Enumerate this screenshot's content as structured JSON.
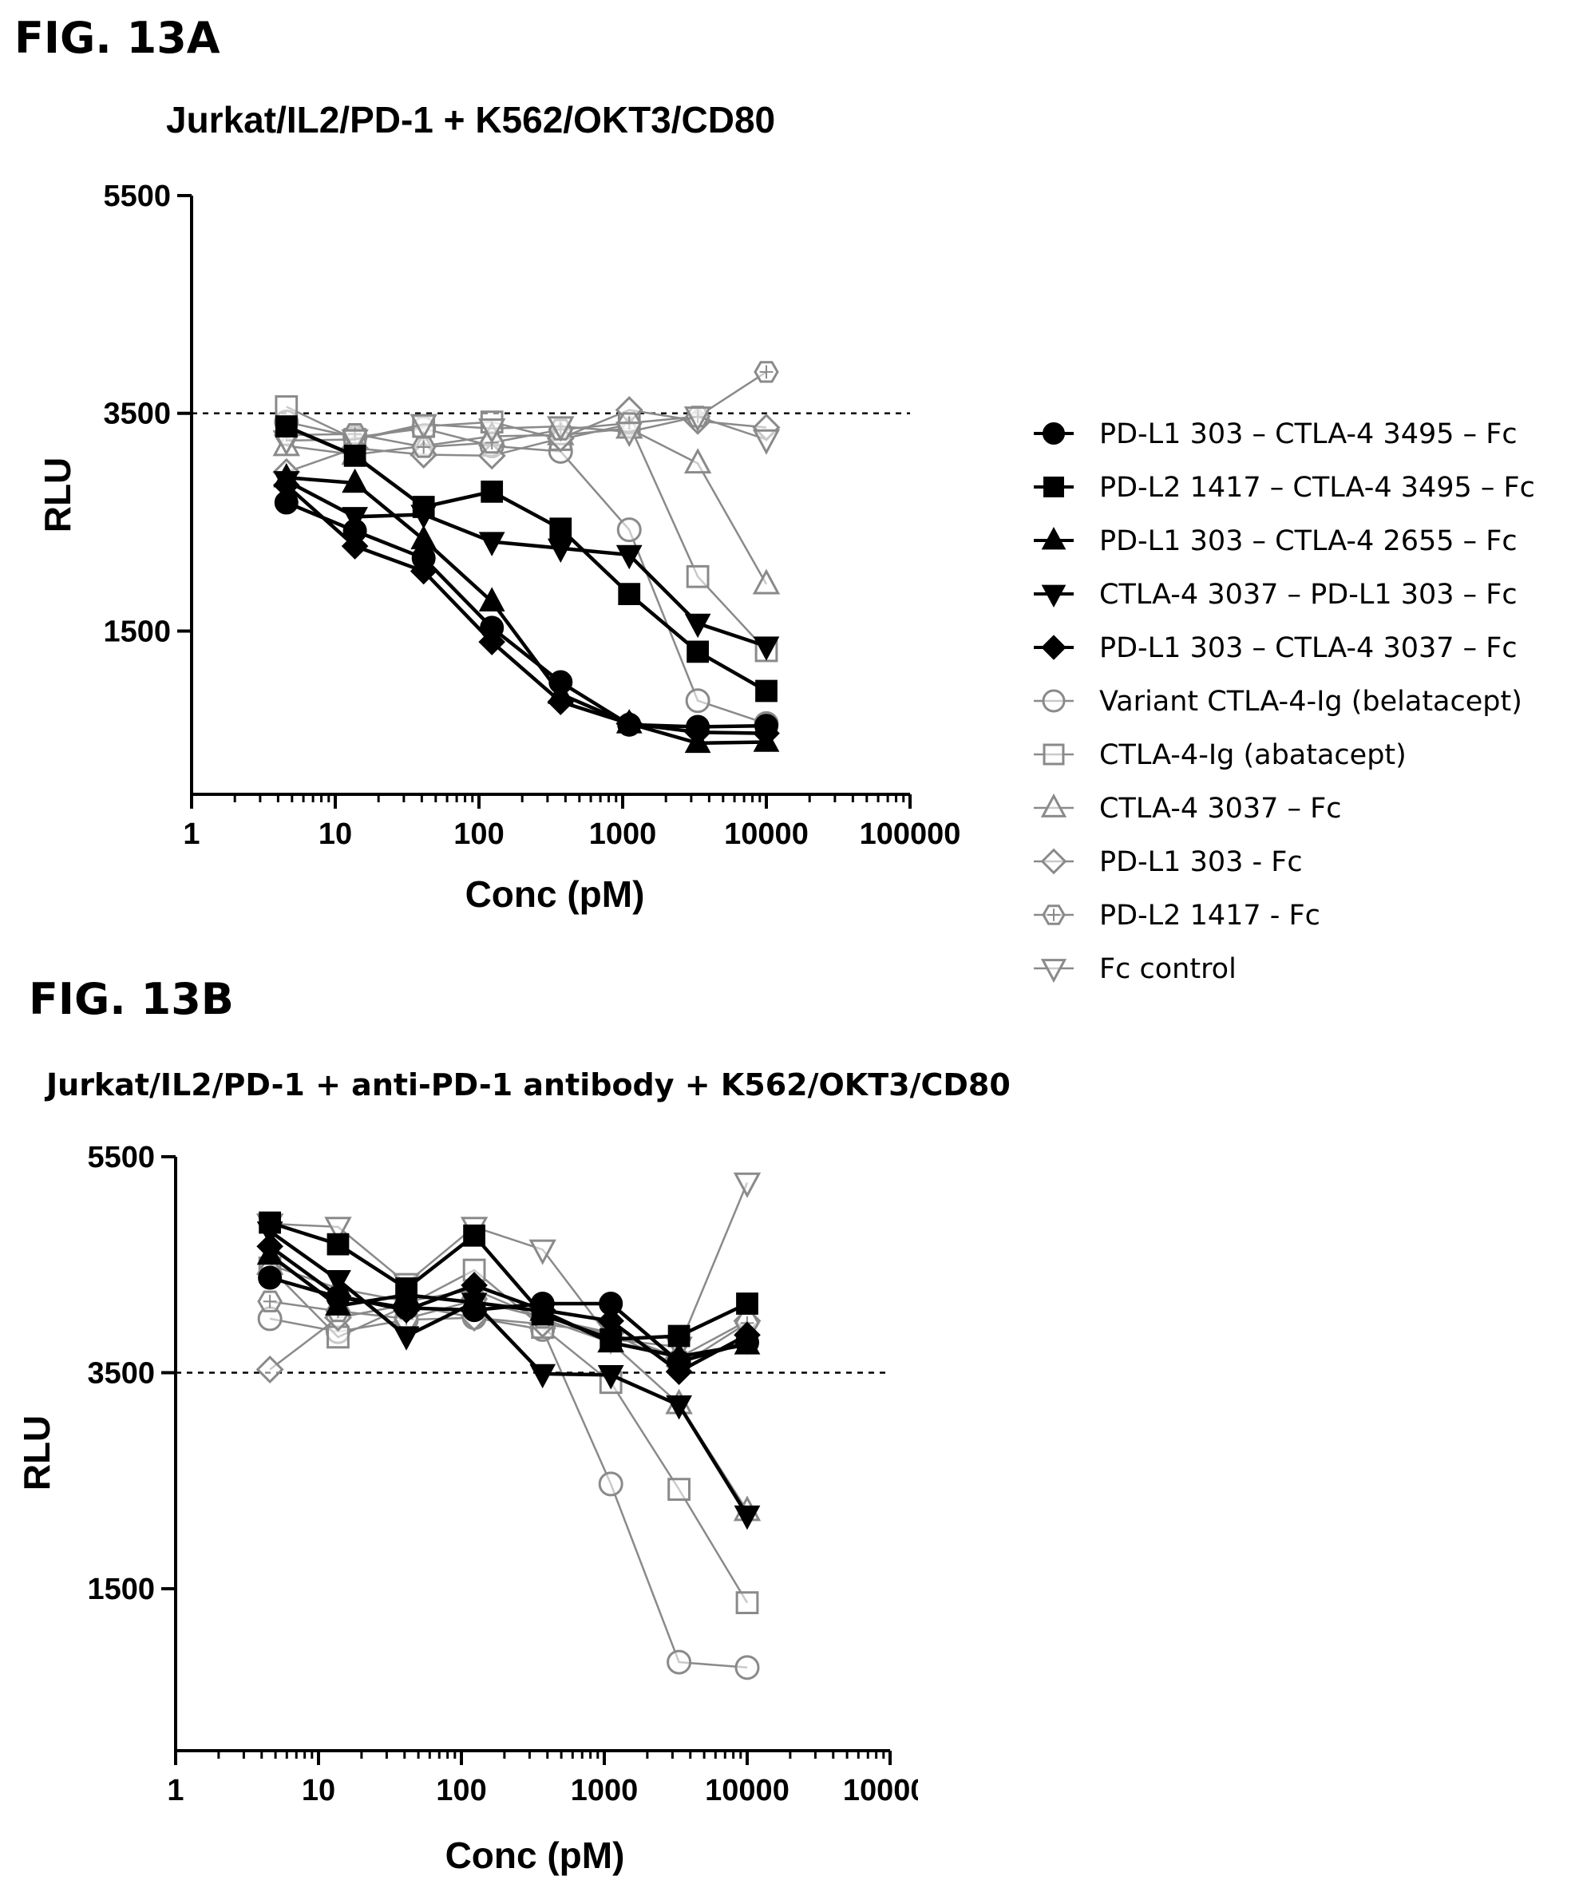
{
  "legend": [
    {
      "name": "PD-L1 303 – CTLA-4 3495 – Fc",
      "marker": "circle",
      "filled": true,
      "color": "#000000"
    },
    {
      "name": "PD-L2 1417 – CTLA-4 3495 – Fc",
      "marker": "square",
      "filled": true,
      "color": "#000000"
    },
    {
      "name": "PD-L1 303 – CTLA-4 2655 – Fc",
      "marker": "triangle-up",
      "filled": true,
      "color": "#000000"
    },
    {
      "name": "CTLA-4 3037 – PD-L1 303 – Fc",
      "marker": "triangle-down",
      "filled": true,
      "color": "#000000"
    },
    {
      "name": "PD-L1 303 – CTLA-4 3037 – Fc",
      "marker": "diamond",
      "filled": true,
      "color": "#000000"
    },
    {
      "name": "Variant CTLA-4-Ig (belatacept)",
      "marker": "circle",
      "filled": false,
      "color": "#8a8a8a"
    },
    {
      "name": "CTLA-4-Ig (abatacept)",
      "marker": "square",
      "filled": false,
      "color": "#8a8a8a"
    },
    {
      "name": "CTLA-4 3037 – Fc",
      "marker": "triangle-up",
      "filled": false,
      "color": "#8a8a8a"
    },
    {
      "name": "PD-L1 303 - Fc",
      "marker": "diamond",
      "filled": false,
      "color": "#8a8a8a"
    },
    {
      "name": "PD-L2 1417 - Fc",
      "marker": "hexagon",
      "filled": false,
      "color": "#8a8a8a"
    },
    {
      "name": "Fc control",
      "marker": "triangle-down",
      "filled": false,
      "color": "#8a8a8a"
    }
  ],
  "chart_data": [
    {
      "panel_label": "FIG. 13A",
      "type": "line",
      "title": "Jurkat/IL2/PD-1 + K562/OKT3/CD80",
      "xlabel": "Conc (pM)",
      "ylabel": "RLU",
      "xscale": "log",
      "xlim": [
        1,
        100000
      ],
      "x_ticks": [
        "1",
        "10",
        "100",
        "1000",
        "10000",
        "100000"
      ],
      "ylim": [
        0,
        5500
      ],
      "y_ticks": [
        "1500",
        "3500",
        "5500"
      ],
      "reference_line": 3500,
      "x": [
        4.57,
        13.7,
        41.2,
        123,
        370,
        1111,
        3333,
        10000
      ],
      "series": [
        {
          "name": "PD-L1 303 – CTLA-4 3495 – Fc",
          "values": [
            2680,
            2420,
            2170,
            1530,
            1030,
            640,
            620,
            630
          ]
        },
        {
          "name": "PD-L2 1417 – CTLA-4 3495 – Fc",
          "values": [
            3380,
            3110,
            2640,
            2780,
            2440,
            1840,
            1310,
            950
          ]
        },
        {
          "name": "PD-L1 303 – CTLA-4 2655 – Fc",
          "values": [
            2910,
            2860,
            2340,
            1770,
            920,
            650,
            470,
            480
          ]
        },
        {
          "name": "CTLA-4 3037 – PD-L1 303 – Fc",
          "values": [
            2880,
            2550,
            2570,
            2320,
            2260,
            2200,
            1570,
            1360
          ]
        },
        {
          "name": "PD-L1 303 – CTLA-4 3037 – Fc",
          "values": [
            2840,
            2280,
            2050,
            1400,
            850,
            650,
            570,
            560
          ]
        },
        {
          "name": "Variant CTLA-4-Ig (belatacept)",
          "values": [
            3420,
            3280,
            3360,
            3200,
            3150,
            2430,
            860,
            650
          ]
        },
        {
          "name": "CTLA-4-Ig (abatacept)",
          "values": [
            3560,
            3260,
            3380,
            3420,
            3260,
            3400,
            2000,
            1320
          ]
        },
        {
          "name": "CTLA-4 3037 – Fc",
          "values": [
            3200,
            3120,
            3200,
            3290,
            3300,
            3360,
            3040,
            1930
          ]
        },
        {
          "name": "PD-L1 303 - Fc",
          "values": [
            2960,
            3180,
            3120,
            3110,
            3270,
            3530,
            3430,
            3370
          ]
        },
        {
          "name": "PD-L2 1417 - Fc",
          "values": [
            3300,
            3310,
            3190,
            3230,
            3350,
            3410,
            3470,
            3880
          ]
        },
        {
          "name": "Fc control",
          "values": [
            3250,
            3260,
            3400,
            3360,
            3380,
            3330,
            3470,
            3260
          ]
        }
      ]
    },
    {
      "panel_label": "FIG. 13B",
      "type": "line",
      "title": "Jurkat/IL2/PD-1 + anti-PD-1 antibody + K562/OKT3/CD80",
      "xlabel": "Conc (pM)",
      "ylabel": "RLU",
      "xscale": "log",
      "xlim": [
        1,
        100000
      ],
      "x_ticks": [
        "1",
        "10",
        "100",
        "1000",
        "10000",
        "10000("
      ],
      "ylim": [
        0,
        5500
      ],
      "y_ticks": [
        "1500",
        "3500",
        "5500"
      ],
      "reference_line": 3500,
      "x": [
        4.57,
        13.7,
        41.2,
        123,
        370,
        1111,
        3333,
        10000
      ],
      "series": [
        {
          "name": "PD-L1 303 – CTLA-4 3495 – Fc",
          "values": [
            4380,
            4200,
            4100,
            4080,
            4140,
            4140,
            3600,
            3780
          ]
        },
        {
          "name": "PD-L2 1417 – CTLA-4 3495 – Fc",
          "values": [
            4890,
            4690,
            4280,
            4770,
            4040,
            3810,
            3840,
            4140
          ]
        },
        {
          "name": "PD-L1 303 – CTLA-4 2655 – Fc",
          "values": [
            4590,
            4120,
            4220,
            4150,
            4070,
            3780,
            3650,
            3760
          ]
        },
        {
          "name": "CTLA-4 3037 – PD-L1 303 – Fc",
          "values": [
            4810,
            4360,
            3840,
            4150,
            3490,
            3480,
            3200,
            2180
          ]
        },
        {
          "name": "PD-L1 303 – CTLA-4 3037 – Fc",
          "values": [
            4670,
            4210,
            4080,
            4310,
            4080,
            3980,
            3510,
            3850
          ]
        },
        {
          "name": "Variant CTLA-4-Ig (belatacept)",
          "values": [
            4000,
            3880,
            3990,
            4010,
            3900,
            2470,
            820,
            770
          ]
        },
        {
          "name": "CTLA-4-Ig (abatacept)",
          "values": [
            4470,
            3830,
            4120,
            4450,
            3920,
            3410,
            2420,
            1370
          ]
        },
        {
          "name": "CTLA-4 3037 – Fc",
          "values": [
            4500,
            4280,
            4160,
            4270,
            4000,
            3780,
            3210,
            2220
          ]
        },
        {
          "name": "PD-L1 303 - Fc",
          "values": [
            3530,
            4010,
            4130,
            4010,
            3950,
            3870,
            3640,
            3980
          ]
        },
        {
          "name": "PD-L2 1417 - Fc",
          "values": [
            4160,
            4070,
            4000,
            4170,
            4010,
            3870,
            3560,
            3960
          ]
        },
        {
          "name": "Fc control",
          "values": [
            4880,
            4850,
            4330,
            4850,
            4640,
            3810,
            3740,
            5260
          ]
        }
      ]
    }
  ]
}
